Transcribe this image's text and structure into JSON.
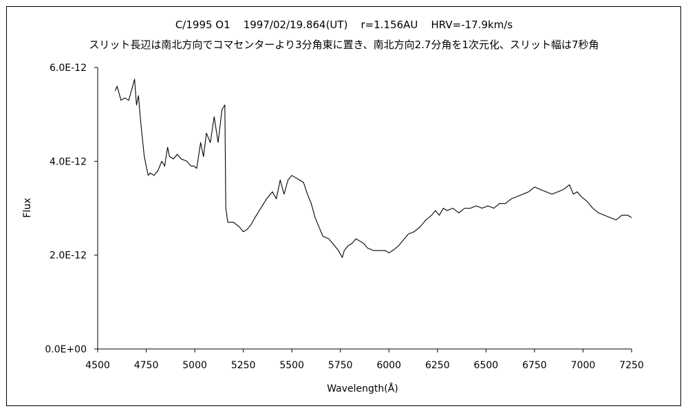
{
  "chart_data": {
    "type": "line",
    "title": "C/1995 O1    1997/02/19.864(UT)    r=1.156AU    HRV=-17.9km/s",
    "subtitle": "スリット長辺は南北方向でコマセンターより3分角東に置き、南北方向2.7分角を1次元化、スリット幅は7秒角",
    "xlabel": "Wavelength(Å)",
    "ylabel": "Flux",
    "xlim": [
      4500,
      7250
    ],
    "ylim": [
      0,
      6e-12
    ],
    "x_ticks": [
      "4500",
      "4750",
      "5000",
      "5250",
      "5500",
      "5750",
      "6000",
      "6250",
      "6500",
      "6750",
      "7000",
      "7250"
    ],
    "y_ticks": [
      "0.0E+00",
      "2.0E-12",
      "4.0E-12",
      "6.0E-12"
    ],
    "grid": false,
    "legend": "none",
    "line_color": "#000000",
    "series": [
      {
        "x": [
          4590,
          4600,
          4620,
          4640,
          4660,
          4680,
          4690,
          4700,
          4710,
          4720,
          4740,
          4760,
          4770,
          4790,
          4810,
          4830,
          4845,
          4860,
          4870,
          4890,
          4910,
          4930,
          4960,
          4980,
          4995,
          5010,
          5030,
          5045,
          5060,
          5080,
          5100,
          5120,
          5140,
          5155,
          5160,
          5170,
          5200,
          5230,
          5250,
          5270,
          5290,
          5310,
          5340,
          5370,
          5400,
          5420,
          5440,
          5460,
          5480,
          5500,
          5520,
          5540,
          5560,
          5580,
          5600,
          5620,
          5640,
          5660,
          5690,
          5720,
          5740,
          5760,
          5770,
          5790,
          5810,
          5830,
          5850,
          5870,
          5890,
          5920,
          5950,
          5980,
          6000,
          6020,
          6050,
          6080,
          6100,
          6130,
          6160,
          6190,
          6220,
          6240,
          6260,
          6280,
          6300,
          6330,
          6360,
          6390,
          6420,
          6450,
          6480,
          6510,
          6540,
          6570,
          6600,
          6630,
          6660,
          6690,
          6720,
          6750,
          6780,
          6810,
          6840,
          6870,
          6900,
          6930,
          6950,
          6970,
          6990,
          7020,
          7050,
          7080,
          7110,
          7140,
          7170,
          7200,
          7230,
          7250
        ],
        "y": [
          5.5,
          5.6,
          5.3,
          5.35,
          5.3,
          5.6,
          5.75,
          5.2,
          5.4,
          4.9,
          4.1,
          3.7,
          3.75,
          3.7,
          3.8,
          4.0,
          3.9,
          4.3,
          4.1,
          4.05,
          4.15,
          4.05,
          4.0,
          3.9,
          3.9,
          3.85,
          4.4,
          4.1,
          4.6,
          4.4,
          4.95,
          4.4,
          5.1,
          5.2,
          3.0,
          2.7,
          2.7,
          2.6,
          2.5,
          2.55,
          2.65,
          2.8,
          3.0,
          3.2,
          3.35,
          3.2,
          3.6,
          3.3,
          3.6,
          3.7,
          3.65,
          3.6,
          3.55,
          3.3,
          3.1,
          2.8,
          2.6,
          2.4,
          2.35,
          2.2,
          2.1,
          1.95,
          2.1,
          2.2,
          2.25,
          2.35,
          2.3,
          2.25,
          2.15,
          2.1,
          2.1,
          2.1,
          2.05,
          2.1,
          2.2,
          2.35,
          2.45,
          2.5,
          2.6,
          2.75,
          2.85,
          2.95,
          2.85,
          3.0,
          2.95,
          3.0,
          2.9,
          3.0,
          3.0,
          3.05,
          3.0,
          3.05,
          3.0,
          3.1,
          3.1,
          3.2,
          3.25,
          3.3,
          3.35,
          3.45,
          3.4,
          3.35,
          3.3,
          3.35,
          3.4,
          3.5,
          3.3,
          3.35,
          3.25,
          3.15,
          3.0,
          2.9,
          2.85,
          2.8,
          2.75,
          2.85,
          2.85,
          2.8
        ]
      }
    ]
  }
}
